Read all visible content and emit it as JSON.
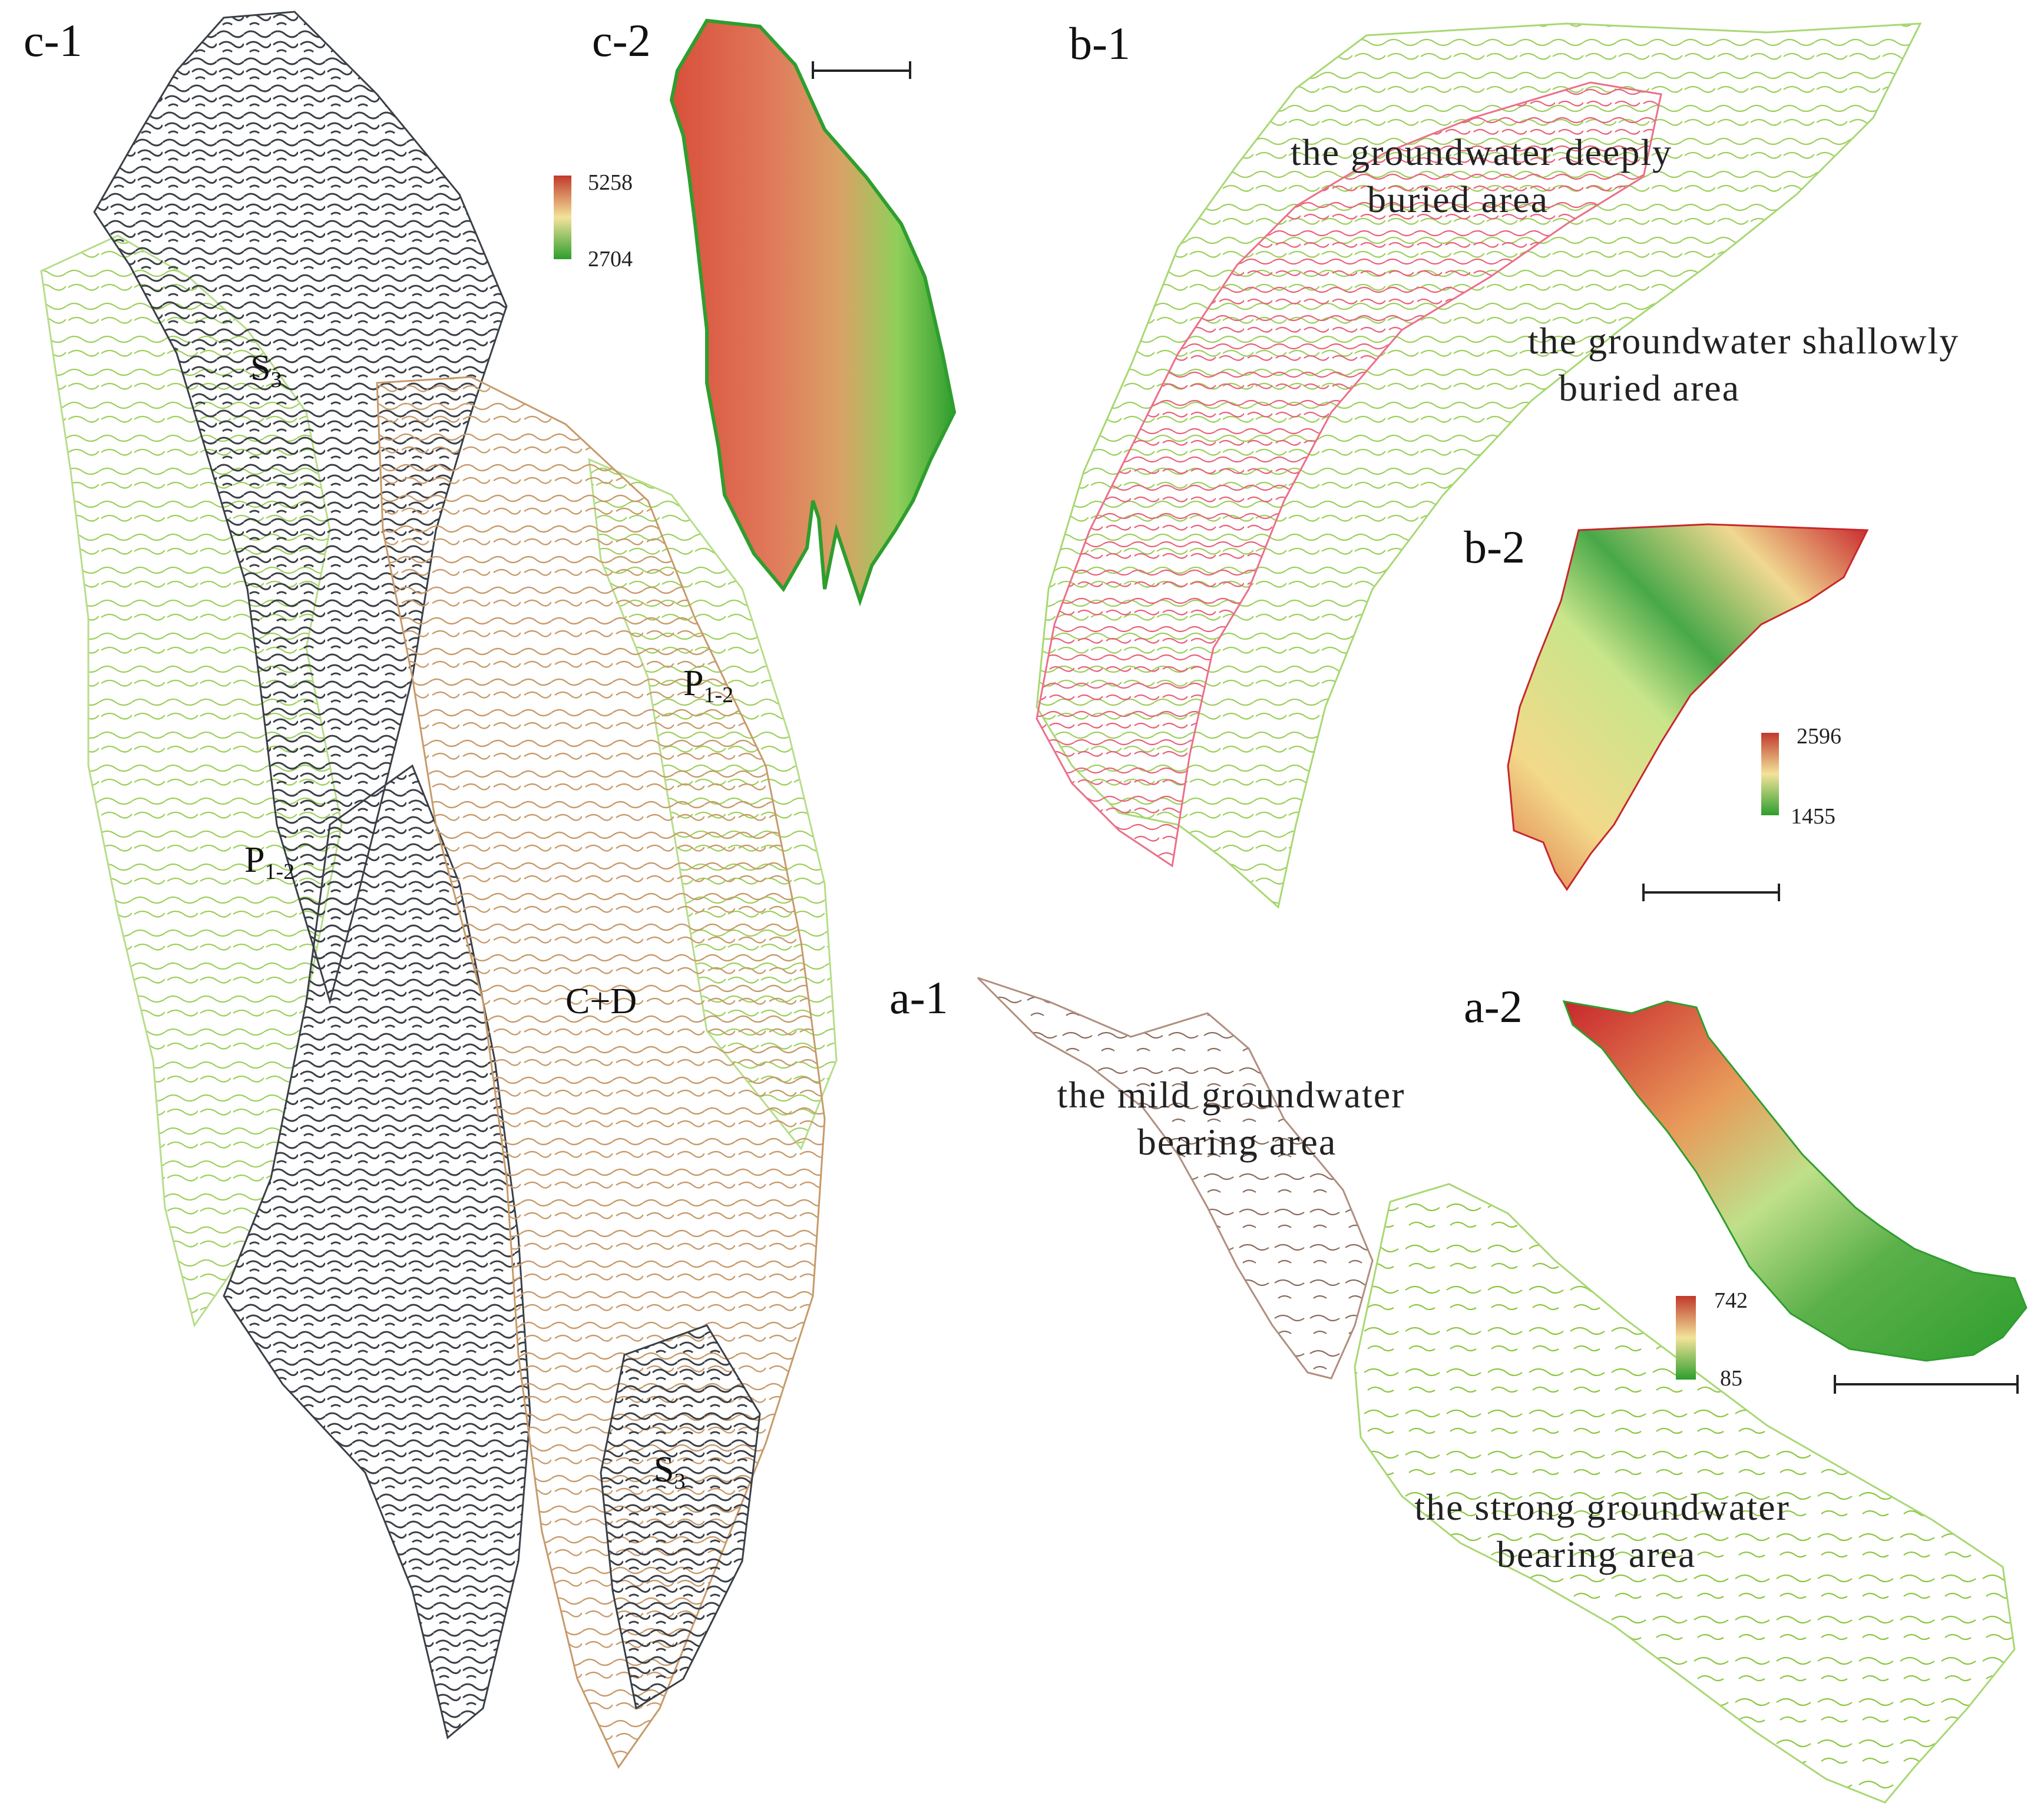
{
  "panels": {
    "c1": {
      "label": "c-1"
    },
    "c2": {
      "label": "c-2",
      "legend": {
        "max": "5258",
        "min": "2704"
      }
    },
    "b1": {
      "label": "b-1",
      "zone_deep": {
        "line1": "the  groundwater deeply",
        "line2": "buried area"
      },
      "zone_shallow": {
        "line1": "the  groundwater shallowly",
        "line2": "buried area"
      }
    },
    "b2": {
      "label": "b-2",
      "legend": {
        "max": "2596",
        "min": "1455"
      }
    },
    "a1": {
      "label": "a-1",
      "zone_mild": {
        "line1": "the mild groundwater",
        "line2": "bearing area"
      },
      "zone_strong": {
        "line1": "the strong groundwater",
        "line2": "bearing area"
      }
    },
    "a2": {
      "label": "a-2",
      "legend": {
        "max": "742",
        "min": "85"
      }
    }
  },
  "units": {
    "s3": {
      "main": "S",
      "sub": "3"
    },
    "p12": {
      "main": "P",
      "sub": "1-2"
    },
    "cd": {
      "main": "C+D"
    }
  },
  "colors": {
    "contour_dark": "#3a3f47",
    "contour_brown": "#b98a5a",
    "contour_green": "#8cc63f",
    "contour_red": "#e0556a",
    "contour_mild": "#8a6a5a",
    "dem_high": "#c0392b",
    "dem_mid": "#f3e39a",
    "dem_low": "#2e9e2e"
  }
}
